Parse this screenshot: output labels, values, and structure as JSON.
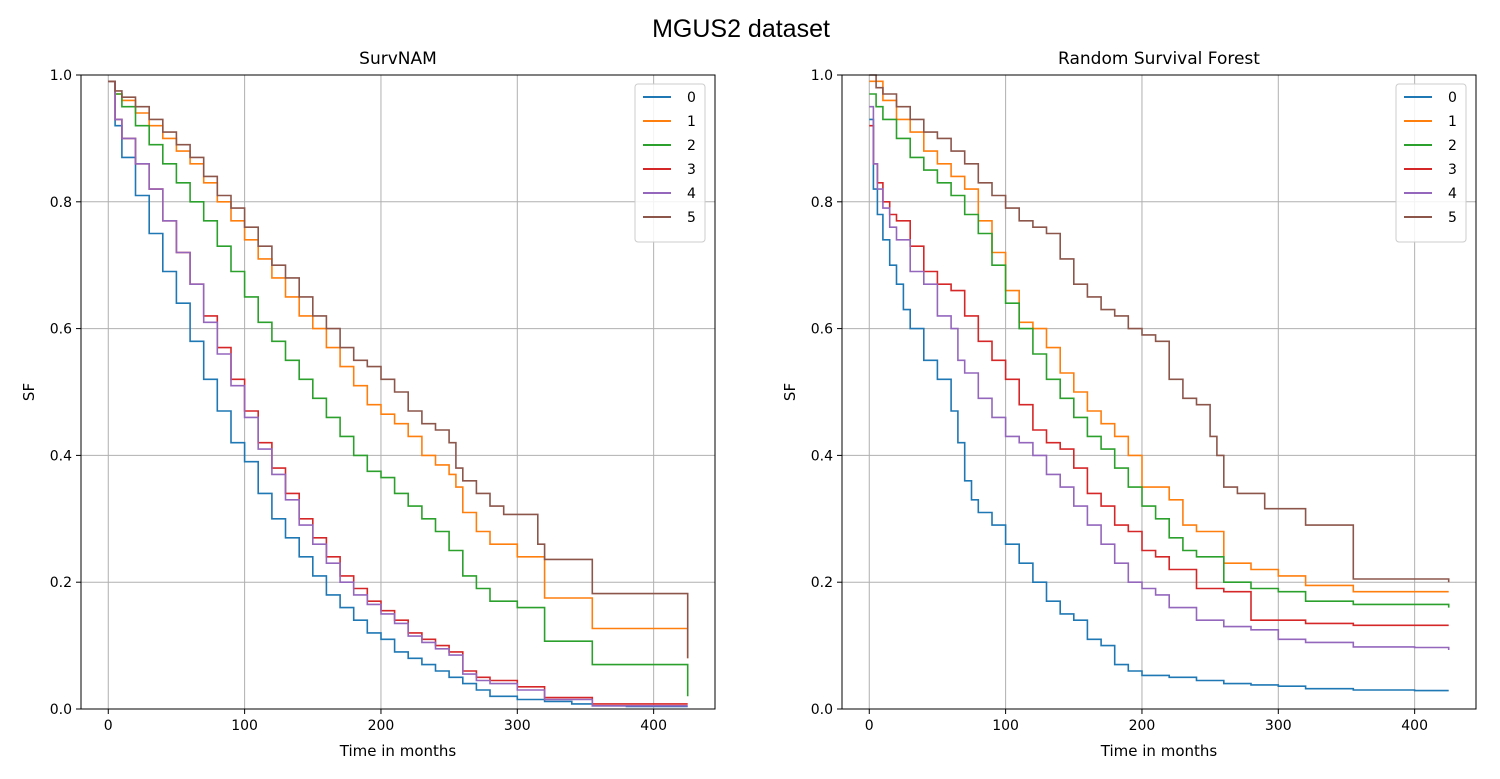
{
  "figure_title": "MGUS2 dataset",
  "chart_data": [
    {
      "type": "line",
      "step": true,
      "title": "SurvNAM",
      "xlabel": "Time in months",
      "ylabel": "SF",
      "xlim": [
        -20,
        445
      ],
      "ylim": [
        0,
        1.0
      ],
      "xticks": [
        0,
        100,
        200,
        300,
        400
      ],
      "yticks": [
        0.0,
        0.2,
        0.4,
        0.6,
        0.8,
        1.0
      ],
      "xtick_labels": [
        "0",
        "100",
        "200",
        "300",
        "400"
      ],
      "ytick_labels": [
        "0.0",
        "0.2",
        "0.4",
        "0.6",
        "0.8",
        "1.0"
      ],
      "grid": true,
      "legend_position": "top-right",
      "series": [
        {
          "name": "0",
          "color": "#1f77b4",
          "x": [
            0,
            5,
            10,
            20,
            30,
            40,
            50,
            60,
            70,
            80,
            90,
            100,
            110,
            120,
            130,
            140,
            150,
            160,
            170,
            180,
            190,
            200,
            210,
            220,
            230,
            240,
            250,
            260,
            270,
            280,
            300,
            320,
            340,
            355,
            380,
            400,
            425
          ],
          "y": [
            0.99,
            0.92,
            0.87,
            0.81,
            0.75,
            0.69,
            0.64,
            0.58,
            0.52,
            0.47,
            0.42,
            0.39,
            0.34,
            0.3,
            0.27,
            0.24,
            0.21,
            0.18,
            0.16,
            0.14,
            0.12,
            0.11,
            0.09,
            0.08,
            0.07,
            0.06,
            0.05,
            0.04,
            0.03,
            0.02,
            0.015,
            0.012,
            0.008,
            0.005,
            0.004,
            0.004,
            0.004
          ]
        },
        {
          "name": "1",
          "color": "#ff7f0e",
          "x": [
            0,
            5,
            10,
            20,
            30,
            40,
            50,
            60,
            70,
            80,
            90,
            100,
            110,
            120,
            130,
            140,
            150,
            160,
            170,
            180,
            190,
            200,
            210,
            220,
            230,
            240,
            250,
            255,
            260,
            270,
            280,
            300,
            315,
            320,
            355,
            400,
            425
          ],
          "y": [
            0.99,
            0.97,
            0.96,
            0.94,
            0.92,
            0.9,
            0.88,
            0.86,
            0.83,
            0.8,
            0.77,
            0.74,
            0.71,
            0.68,
            0.65,
            0.62,
            0.6,
            0.57,
            0.54,
            0.51,
            0.48,
            0.465,
            0.45,
            0.43,
            0.4,
            0.385,
            0.37,
            0.35,
            0.31,
            0.28,
            0.26,
            0.24,
            0.24,
            0.175,
            0.127,
            0.127,
            0.08
          ]
        },
        {
          "name": "2",
          "color": "#2ca02c",
          "x": [
            0,
            5,
            10,
            20,
            30,
            40,
            50,
            60,
            70,
            80,
            90,
            100,
            110,
            120,
            130,
            140,
            150,
            160,
            170,
            180,
            190,
            200,
            210,
            220,
            230,
            240,
            250,
            260,
            270,
            280,
            300,
            315,
            320,
            355,
            400,
            425
          ],
          "y": [
            0.99,
            0.97,
            0.95,
            0.92,
            0.89,
            0.86,
            0.83,
            0.8,
            0.77,
            0.73,
            0.69,
            0.65,
            0.61,
            0.58,
            0.55,
            0.52,
            0.49,
            0.46,
            0.43,
            0.4,
            0.375,
            0.365,
            0.34,
            0.32,
            0.3,
            0.28,
            0.25,
            0.21,
            0.19,
            0.17,
            0.16,
            0.16,
            0.107,
            0.07,
            0.07,
            0.02
          ]
        },
        {
          "name": "3",
          "color": "#d62728",
          "x": [
            0,
            5,
            10,
            20,
            30,
            40,
            50,
            60,
            70,
            80,
            90,
            100,
            110,
            120,
            130,
            140,
            150,
            160,
            170,
            180,
            190,
            200,
            210,
            220,
            230,
            240,
            250,
            260,
            270,
            280,
            300,
            320,
            355,
            400,
            425
          ],
          "y": [
            0.99,
            0.93,
            0.9,
            0.86,
            0.82,
            0.77,
            0.72,
            0.67,
            0.62,
            0.57,
            0.52,
            0.47,
            0.42,
            0.38,
            0.34,
            0.3,
            0.27,
            0.24,
            0.21,
            0.19,
            0.17,
            0.155,
            0.14,
            0.12,
            0.11,
            0.1,
            0.09,
            0.06,
            0.05,
            0.045,
            0.035,
            0.018,
            0.008,
            0.008,
            0.008
          ]
        },
        {
          "name": "4",
          "color": "#9467bd",
          "x": [
            0,
            5,
            10,
            20,
            30,
            40,
            50,
            60,
            70,
            80,
            90,
            100,
            110,
            120,
            130,
            140,
            150,
            160,
            170,
            180,
            190,
            200,
            210,
            220,
            230,
            240,
            250,
            260,
            270,
            280,
            300,
            320,
            355,
            400,
            425
          ],
          "y": [
            0.99,
            0.93,
            0.9,
            0.86,
            0.82,
            0.77,
            0.72,
            0.67,
            0.61,
            0.56,
            0.51,
            0.46,
            0.41,
            0.37,
            0.33,
            0.29,
            0.26,
            0.23,
            0.2,
            0.18,
            0.165,
            0.15,
            0.135,
            0.115,
            0.105,
            0.095,
            0.085,
            0.055,
            0.045,
            0.04,
            0.03,
            0.015,
            0.005,
            0.005,
            0.005
          ]
        },
        {
          "name": "5",
          "color": "#8c564b",
          "x": [
            0,
            5,
            10,
            20,
            30,
            40,
            50,
            60,
            70,
            80,
            90,
            100,
            110,
            120,
            130,
            140,
            150,
            160,
            170,
            180,
            190,
            200,
            210,
            220,
            230,
            240,
            250,
            255,
            260,
            270,
            280,
            290,
            310,
            315,
            320,
            355,
            400,
            423,
            425
          ],
          "y": [
            0.99,
            0.975,
            0.965,
            0.95,
            0.93,
            0.91,
            0.89,
            0.87,
            0.84,
            0.81,
            0.79,
            0.76,
            0.73,
            0.7,
            0.68,
            0.65,
            0.62,
            0.6,
            0.57,
            0.55,
            0.54,
            0.52,
            0.5,
            0.47,
            0.45,
            0.44,
            0.42,
            0.38,
            0.36,
            0.34,
            0.32,
            0.307,
            0.307,
            0.26,
            0.236,
            0.182,
            0.182,
            0.182,
            0.08
          ]
        }
      ]
    },
    {
      "type": "line",
      "step": true,
      "title": "Random Survival Forest",
      "xlabel": "Time in months",
      "ylabel": "SF",
      "xlim": [
        -20,
        445
      ],
      "ylim": [
        0,
        1.0
      ],
      "xticks": [
        0,
        100,
        200,
        300,
        400
      ],
      "yticks": [
        0.0,
        0.2,
        0.4,
        0.6,
        0.8,
        1.0
      ],
      "xtick_labels": [
        "0",
        "100",
        "200",
        "300",
        "400"
      ],
      "ytick_labels": [
        "0.0",
        "0.2",
        "0.4",
        "0.6",
        "0.8",
        "1.0"
      ],
      "grid": true,
      "legend_position": "top-right",
      "series": [
        {
          "name": "0",
          "color": "#1f77b4",
          "x": [
            0,
            3,
            6,
            10,
            15,
            20,
            25,
            30,
            40,
            50,
            60,
            65,
            70,
            75,
            80,
            90,
            100,
            110,
            120,
            130,
            140,
            150,
            160,
            170,
            180,
            190,
            200,
            220,
            240,
            260,
            280,
            300,
            320,
            355,
            400,
            425
          ],
          "y": [
            0.93,
            0.82,
            0.78,
            0.74,
            0.7,
            0.67,
            0.63,
            0.6,
            0.55,
            0.52,
            0.47,
            0.42,
            0.36,
            0.33,
            0.31,
            0.29,
            0.26,
            0.23,
            0.2,
            0.17,
            0.15,
            0.14,
            0.11,
            0.1,
            0.07,
            0.06,
            0.053,
            0.05,
            0.045,
            0.04,
            0.038,
            0.036,
            0.032,
            0.03,
            0.029,
            0.029
          ]
        },
        {
          "name": "1",
          "color": "#ff7f0e",
          "x": [
            0,
            10,
            20,
            30,
            40,
            50,
            60,
            70,
            80,
            90,
            100,
            110,
            120,
            130,
            140,
            150,
            160,
            170,
            180,
            190,
            200,
            220,
            230,
            240,
            260,
            280,
            300,
            320,
            355,
            400,
            425
          ],
          "y": [
            0.99,
            0.96,
            0.93,
            0.91,
            0.88,
            0.86,
            0.84,
            0.82,
            0.77,
            0.72,
            0.66,
            0.61,
            0.6,
            0.57,
            0.53,
            0.5,
            0.47,
            0.45,
            0.43,
            0.4,
            0.35,
            0.33,
            0.29,
            0.28,
            0.23,
            0.22,
            0.21,
            0.195,
            0.185,
            0.185,
            0.185
          ]
        },
        {
          "name": "2",
          "color": "#2ca02c",
          "x": [
            0,
            5,
            10,
            20,
            30,
            40,
            50,
            60,
            70,
            80,
            90,
            100,
            110,
            120,
            130,
            140,
            150,
            160,
            170,
            180,
            190,
            200,
            210,
            220,
            230,
            240,
            260,
            280,
            300,
            320,
            355,
            400,
            425
          ],
          "y": [
            0.97,
            0.95,
            0.93,
            0.9,
            0.87,
            0.85,
            0.83,
            0.81,
            0.78,
            0.75,
            0.7,
            0.64,
            0.6,
            0.56,
            0.52,
            0.49,
            0.46,
            0.43,
            0.41,
            0.38,
            0.35,
            0.32,
            0.3,
            0.27,
            0.25,
            0.24,
            0.2,
            0.19,
            0.185,
            0.17,
            0.165,
            0.165,
            0.16
          ]
        },
        {
          "name": "3",
          "color": "#d62728",
          "x": [
            0,
            3,
            6,
            10,
            15,
            20,
            30,
            40,
            50,
            60,
            70,
            80,
            90,
            100,
            110,
            120,
            130,
            140,
            150,
            160,
            170,
            180,
            190,
            200,
            210,
            220,
            240,
            260,
            280,
            320,
            355,
            400,
            425
          ],
          "y": [
            0.92,
            0.86,
            0.83,
            0.8,
            0.78,
            0.77,
            0.73,
            0.69,
            0.67,
            0.66,
            0.62,
            0.58,
            0.55,
            0.52,
            0.48,
            0.44,
            0.42,
            0.41,
            0.38,
            0.34,
            0.32,
            0.29,
            0.28,
            0.25,
            0.24,
            0.22,
            0.19,
            0.185,
            0.14,
            0.135,
            0.132,
            0.132,
            0.132
          ]
        },
        {
          "name": "4",
          "color": "#9467bd",
          "x": [
            0,
            3,
            6,
            10,
            15,
            20,
            30,
            40,
            50,
            60,
            65,
            70,
            80,
            90,
            100,
            110,
            120,
            130,
            140,
            150,
            160,
            170,
            180,
            190,
            200,
            210,
            220,
            240,
            260,
            280,
            300,
            320,
            355,
            400,
            425
          ],
          "y": [
            0.95,
            0.86,
            0.82,
            0.79,
            0.76,
            0.74,
            0.69,
            0.67,
            0.62,
            0.6,
            0.55,
            0.53,
            0.49,
            0.46,
            0.43,
            0.42,
            0.4,
            0.37,
            0.35,
            0.32,
            0.29,
            0.26,
            0.23,
            0.2,
            0.19,
            0.18,
            0.16,
            0.14,
            0.13,
            0.125,
            0.11,
            0.105,
            0.098,
            0.097,
            0.093
          ]
        },
        {
          "name": "5",
          "color": "#8c564b",
          "x": [
            0,
            5,
            10,
            20,
            30,
            40,
            50,
            60,
            70,
            80,
            90,
            100,
            110,
            120,
            130,
            140,
            150,
            160,
            170,
            180,
            190,
            200,
            210,
            220,
            230,
            240,
            250,
            255,
            260,
            270,
            290,
            320,
            355,
            400,
            425
          ],
          "y": [
            1.0,
            0.98,
            0.97,
            0.95,
            0.93,
            0.91,
            0.9,
            0.88,
            0.86,
            0.83,
            0.81,
            0.79,
            0.77,
            0.76,
            0.75,
            0.71,
            0.67,
            0.65,
            0.63,
            0.62,
            0.6,
            0.59,
            0.58,
            0.52,
            0.49,
            0.48,
            0.43,
            0.4,
            0.35,
            0.34,
            0.316,
            0.29,
            0.205,
            0.205,
            0.2
          ]
        }
      ]
    }
  ]
}
